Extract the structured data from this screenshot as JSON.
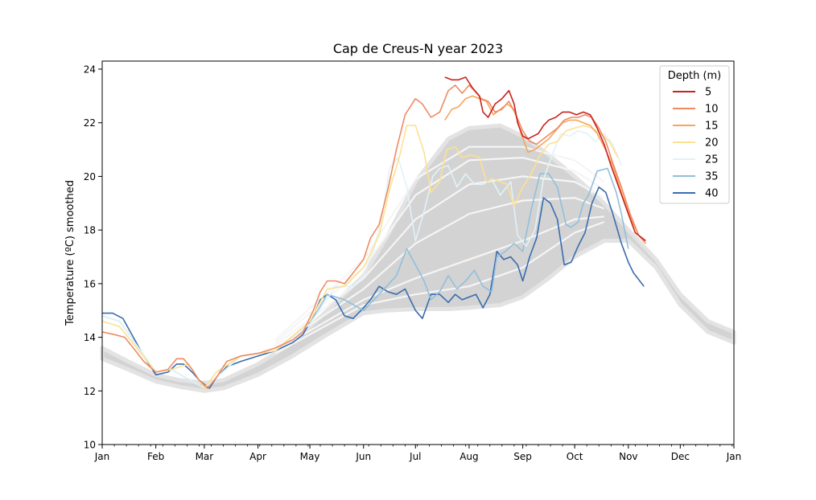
{
  "chart_data": {
    "type": "line",
    "title": "Cap de Creus-N year 2023",
    "xlabel": "",
    "ylabel": "Temperature (ºC) smoothed",
    "x_unit": "day of year",
    "xlim": [
      0,
      365
    ],
    "ylim": [
      10,
      24.3
    ],
    "x_ticks": [
      {
        "label": "Jan",
        "x": 0
      },
      {
        "label": "Feb",
        "x": 31
      },
      {
        "label": "Mar",
        "x": 59
      },
      {
        "label": "Apr",
        "x": 90
      },
      {
        "label": "May",
        "x": 120
      },
      {
        "label": "Jun",
        "x": 151
      },
      {
        "label": "Jul",
        "x": 181
      },
      {
        "label": "Aug",
        "x": 212
      },
      {
        "label": "Sep",
        "x": 243
      },
      {
        "label": "Oct",
        "x": 273
      },
      {
        "label": "Nov",
        "x": 304
      },
      {
        "label": "Dec",
        "x": 334
      },
      {
        "label": "Jan",
        "x": 365
      }
    ],
    "y_ticks": [
      10,
      12,
      14,
      16,
      18,
      20,
      22,
      24
    ],
    "legend": {
      "title": "Depth (m)",
      "placement": "top-right"
    },
    "climatology_band": {
      "description": "",
      "color": "#d3d3d3",
      "x": [
        0,
        15,
        31,
        45,
        59,
        70,
        90,
        110,
        130,
        151,
        165,
        181,
        200,
        212,
        230,
        243,
        258,
        273,
        290,
        304,
        320,
        334,
        350,
        365
      ],
      "lower": [
        13.2,
        12.8,
        12.35,
        12.15,
        12.0,
        12.1,
        12.6,
        13.3,
        14.1,
        14.9,
        15.0,
        15.05,
        15.05,
        15.1,
        15.2,
        15.5,
        16.2,
        17.0,
        17.6,
        17.6,
        16.6,
        15.2,
        14.2,
        13.8
      ],
      "upper": [
        13.6,
        13.1,
        12.6,
        12.4,
        12.3,
        12.4,
        13.0,
        13.8,
        15.0,
        16.3,
        17.8,
        19.8,
        21.4,
        21.8,
        21.9,
        21.5,
        20.8,
        20.0,
        19.0,
        18.0,
        16.9,
        15.6,
        14.6,
        14.2
      ]
    },
    "climatology_means": [
      {
        "x": [
          100,
          151,
          181,
          212,
          243,
          273,
          290
        ],
        "y": [
          13.4,
          15.2,
          15.6,
          15.9,
          16.6,
          17.9,
          18.3
        ]
      },
      {
        "x": [
          100,
          151,
          181,
          212,
          243,
          273,
          290
        ],
        "y": [
          13.5,
          15.4,
          16.2,
          16.9,
          17.6,
          18.4,
          18.5
        ]
      },
      {
        "x": [
          100,
          151,
          181,
          212,
          243,
          273,
          290
        ],
        "y": [
          13.6,
          15.8,
          17.5,
          18.6,
          19.1,
          19.2,
          18.8
        ]
      },
      {
        "x": [
          100,
          151,
          181,
          212,
          243,
          273,
          290
        ],
        "y": [
          13.7,
          16.2,
          18.4,
          19.7,
          20.0,
          19.8,
          19.2
        ]
      },
      {
        "x": [
          100,
          151,
          181,
          212,
          243,
          273,
          290
        ],
        "y": [
          13.8,
          16.6,
          19.3,
          20.6,
          20.7,
          20.2,
          19.5
        ]
      },
      {
        "x": [
          100,
          151,
          181,
          212,
          243,
          273,
          290
        ],
        "y": [
          13.9,
          16.9,
          19.9,
          21.1,
          21.1,
          20.6,
          19.8
        ]
      }
    ],
    "series": [
      {
        "name": "5",
        "color": "#c8231e",
        "x": [
          198,
          202,
          206,
          210,
          214,
          218,
          220,
          223,
          227,
          231,
          235,
          238,
          240,
          243,
          246,
          249,
          252,
          255,
          258,
          262,
          266,
          270,
          274,
          278,
          282,
          286,
          290,
          294,
          299,
          304,
          308,
          314
        ],
        "y": [
          23.7,
          23.6,
          23.6,
          23.7,
          23.3,
          23.0,
          22.4,
          22.2,
          22.7,
          22.9,
          23.2,
          22.7,
          22.0,
          21.5,
          21.4,
          21.5,
          21.6,
          21.9,
          22.1,
          22.2,
          22.4,
          22.4,
          22.3,
          22.4,
          22.3,
          21.8,
          21.2,
          20.4,
          19.5,
          18.6,
          17.9,
          17.6
        ]
      },
      {
        "name": "10",
        "color": "#ef8a62",
        "x": [
          0,
          7,
          13,
          18,
          24,
          31,
          38,
          43,
          47,
          52,
          56,
          61,
          66,
          72,
          80,
          90,
          100,
          110,
          116,
          122,
          126,
          130,
          135,
          140,
          145,
          151,
          155,
          160,
          165,
          170,
          175,
          181,
          185,
          190,
          195,
          200,
          204,
          208,
          212,
          215,
          219,
          223,
          227,
          231,
          235,
          239,
          243,
          247,
          251,
          255,
          259,
          263,
          267,
          271,
          275,
          279,
          283,
          287,
          291,
          295,
          300,
          305,
          310,
          314
        ],
        "y": [
          14.2,
          14.1,
          14.0,
          13.6,
          13.1,
          12.7,
          12.8,
          13.2,
          13.2,
          12.8,
          12.4,
          12.1,
          12.5,
          13.1,
          13.3,
          13.4,
          13.6,
          13.9,
          14.2,
          15.0,
          15.7,
          16.1,
          16.1,
          16.0,
          16.4,
          16.9,
          17.7,
          18.2,
          19.5,
          21.0,
          22.3,
          22.9,
          22.7,
          22.2,
          22.4,
          23.2,
          23.4,
          23.1,
          23.4,
          23.2,
          22.9,
          22.8,
          22.4,
          22.5,
          22.8,
          22.3,
          21.7,
          21.3,
          21.2,
          21.4,
          21.6,
          21.8,
          22.1,
          22.2,
          22.2,
          22.3,
          22.2,
          21.8,
          21.3,
          20.5,
          19.6,
          18.6,
          17.8,
          17.5
        ]
      },
      {
        "name": "15",
        "color": "#f6a55a",
        "x": [
          198,
          202,
          206,
          210,
          214,
          218,
          222,
          226,
          230,
          234,
          238,
          242,
          246,
          250,
          254,
          258,
          262,
          266,
          270,
          274,
          278,
          282,
          286,
          290,
          295,
          300,
          305,
          310,
          314
        ],
        "y": [
          22.1,
          22.5,
          22.6,
          22.9,
          23.0,
          22.9,
          22.8,
          22.3,
          22.5,
          22.7,
          22.5,
          21.6,
          20.9,
          21.0,
          21.2,
          21.4,
          21.7,
          22.0,
          22.1,
          22.1,
          22.0,
          21.9,
          21.6,
          21.1,
          20.4,
          19.4,
          18.5,
          17.8,
          17.6
        ]
      },
      {
        "name": "20",
        "color": "#fee090",
        "x": [
          0,
          10,
          20,
          31,
          40,
          50,
          59,
          66,
          80,
          100,
          120,
          130,
          140,
          151,
          160,
          166,
          172,
          176,
          181,
          186,
          190,
          195,
          199,
          204,
          208,
          213,
          218,
          222,
          226,
          230,
          234,
          238,
          243,
          248,
          253,
          258,
          263,
          268,
          273,
          278,
          283,
          288,
          293,
          298
        ],
        "y": [
          14.6,
          14.4,
          13.6,
          12.7,
          12.8,
          13.0,
          12.1,
          12.7,
          13.3,
          13.5,
          14.6,
          15.8,
          15.9,
          16.6,
          17.8,
          19.5,
          20.8,
          21.9,
          21.9,
          20.9,
          19.4,
          19.8,
          21.0,
          21.1,
          20.7,
          20.8,
          20.7,
          19.8,
          19.9,
          19.8,
          19.7,
          18.9,
          19.6,
          20.1,
          20.8,
          21.2,
          21.3,
          21.7,
          21.8,
          21.9,
          21.8,
          21.6,
          21.3,
          20.7
        ]
      },
      {
        "name": "25",
        "color": "#e0f3f8",
        "x": [
          0,
          10,
          20,
          31,
          40,
          59,
          80,
          100,
          120,
          135,
          145,
          151,
          157,
          162,
          166,
          171,
          176,
          181,
          186,
          191,
          195,
          200,
          205,
          210,
          215,
          220,
          225,
          230,
          236,
          240,
          245,
          250,
          255,
          260,
          265,
          270,
          275,
          280,
          285,
          290,
          295,
          300
        ],
        "y": [
          14.8,
          14.6,
          13.7,
          12.7,
          12.8,
          12.1,
          13.3,
          13.5,
          14.5,
          15.9,
          15.9,
          16.3,
          17.3,
          18.6,
          20.3,
          20.7,
          19.6,
          17.6,
          18.7,
          20.0,
          20.3,
          20.4,
          19.6,
          20.1,
          19.7,
          19.7,
          19.9,
          19.3,
          19.8,
          17.8,
          17.4,
          18.0,
          19.9,
          20.8,
          21.6,
          21.5,
          21.7,
          21.6,
          21.3,
          21.6,
          21.2,
          20.4
        ]
      },
      {
        "name": "35",
        "color": "#91bfdb",
        "x": [
          0,
          10,
          20,
          31,
          40,
          59,
          80,
          100,
          120,
          130,
          140,
          151,
          160,
          170,
          176,
          181,
          186,
          190,
          195,
          200,
          205,
          210,
          215,
          220,
          225,
          228,
          233,
          238,
          243,
          248,
          253,
          258,
          263,
          268,
          271,
          275,
          278,
          281,
          286,
          292,
          297,
          300,
          304
        ],
        "y": [
          14.8,
          14.6,
          13.7,
          12.7,
          12.8,
          12.1,
          13.3,
          13.5,
          14.5,
          15.6,
          15.4,
          15.0,
          15.6,
          16.3,
          17.3,
          16.7,
          16.1,
          15.4,
          15.7,
          16.3,
          15.8,
          16.1,
          16.5,
          15.9,
          15.7,
          17.0,
          17.2,
          17.5,
          17.2,
          18.8,
          20.1,
          20.1,
          19.6,
          18.2,
          18.1,
          18.3,
          19.0,
          19.3,
          20.2,
          20.3,
          19.4,
          18.6,
          17.3
        ]
      },
      {
        "name": "40",
        "color": "#3a6cb0",
        "x": [
          0,
          6,
          12,
          18,
          24,
          31,
          38,
          43,
          47,
          52,
          56,
          62,
          66,
          72,
          80,
          90,
          100,
          110,
          116,
          122,
          126,
          130,
          135,
          140,
          145,
          151,
          155,
          160,
          165,
          170,
          175,
          181,
          185,
          190,
          195,
          200,
          204,
          208,
          212,
          216,
          220,
          224,
          228,
          232,
          236,
          240,
          243,
          247,
          251,
          255,
          259,
          263,
          267,
          271,
          275,
          279,
          283,
          287,
          291,
          295,
          300,
          304,
          307,
          313
        ],
        "y": [
          14.9,
          14.9,
          14.7,
          14.0,
          13.3,
          12.6,
          12.7,
          13.0,
          13.0,
          12.7,
          12.4,
          12.1,
          12.5,
          12.9,
          13.1,
          13.3,
          13.5,
          13.8,
          14.1,
          14.8,
          15.4,
          15.6,
          15.4,
          14.8,
          14.7,
          15.1,
          15.4,
          15.9,
          15.7,
          15.6,
          15.8,
          15.0,
          14.7,
          15.6,
          15.6,
          15.3,
          15.6,
          15.4,
          15.5,
          15.6,
          15.1,
          15.6,
          17.2,
          16.9,
          17.0,
          16.7,
          16.1,
          17.0,
          17.7,
          19.2,
          19.0,
          18.4,
          16.7,
          16.8,
          17.4,
          17.9,
          19.0,
          19.6,
          19.4,
          18.6,
          17.5,
          16.8,
          16.4,
          15.9
        ]
      }
    ]
  }
}
